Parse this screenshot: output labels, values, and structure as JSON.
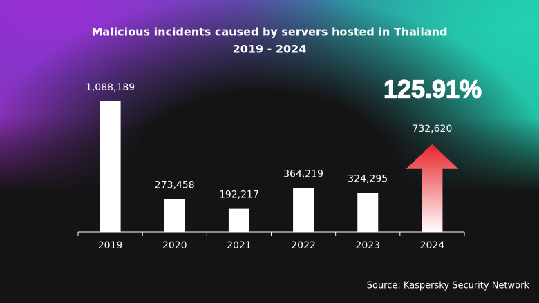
{
  "chart_data": {
    "type": "bar",
    "title": "Malicious incidents caused by servers hosted in Thailand",
    "subtitle": "2019 - 2024",
    "categories": [
      "2019",
      "2020",
      "2021",
      "2022",
      "2023",
      "2024"
    ],
    "values": [
      1088189,
      273458,
      192217,
      364219,
      324295,
      732620
    ],
    "value_labels": [
      "1,088,189",
      "273,458",
      "192,217",
      "364,219",
      "324,295",
      "732,620"
    ],
    "color": "#ffffff",
    "highlight": {
      "index": 5,
      "color": "#e8232a"
    },
    "annotation": "125.91%",
    "source": "Source: Kaspersky Security Network"
  }
}
